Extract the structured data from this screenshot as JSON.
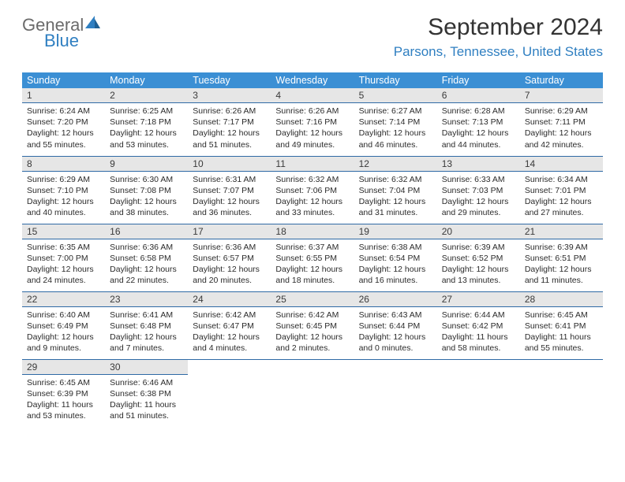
{
  "brand": {
    "general": "General",
    "blue": "Blue"
  },
  "title": "September 2024",
  "location": "Parsons, Tennessee, United States",
  "colors": {
    "header_bg": "#3b8fd4",
    "header_text": "#ffffff",
    "daynum_bg": "#e6e6e6",
    "rule": "#2f6aa5",
    "accent": "#2f7fc1",
    "text": "#2b2b2b"
  },
  "weekdays": [
    "Sunday",
    "Monday",
    "Tuesday",
    "Wednesday",
    "Thursday",
    "Friday",
    "Saturday"
  ],
  "days": [
    {
      "n": "1",
      "sunrise": "6:24 AM",
      "sunset": "7:20 PM",
      "dl1": "Daylight: 12 hours",
      "dl2": "and 55 minutes."
    },
    {
      "n": "2",
      "sunrise": "6:25 AM",
      "sunset": "7:18 PM",
      "dl1": "Daylight: 12 hours",
      "dl2": "and 53 minutes."
    },
    {
      "n": "3",
      "sunrise": "6:26 AM",
      "sunset": "7:17 PM",
      "dl1": "Daylight: 12 hours",
      "dl2": "and 51 minutes."
    },
    {
      "n": "4",
      "sunrise": "6:26 AM",
      "sunset": "7:16 PM",
      "dl1": "Daylight: 12 hours",
      "dl2": "and 49 minutes."
    },
    {
      "n": "5",
      "sunrise": "6:27 AM",
      "sunset": "7:14 PM",
      "dl1": "Daylight: 12 hours",
      "dl2": "and 46 minutes."
    },
    {
      "n": "6",
      "sunrise": "6:28 AM",
      "sunset": "7:13 PM",
      "dl1": "Daylight: 12 hours",
      "dl2": "and 44 minutes."
    },
    {
      "n": "7",
      "sunrise": "6:29 AM",
      "sunset": "7:11 PM",
      "dl1": "Daylight: 12 hours",
      "dl2": "and 42 minutes."
    },
    {
      "n": "8",
      "sunrise": "6:29 AM",
      "sunset": "7:10 PM",
      "dl1": "Daylight: 12 hours",
      "dl2": "and 40 minutes."
    },
    {
      "n": "9",
      "sunrise": "6:30 AM",
      "sunset": "7:08 PM",
      "dl1": "Daylight: 12 hours",
      "dl2": "and 38 minutes."
    },
    {
      "n": "10",
      "sunrise": "6:31 AM",
      "sunset": "7:07 PM",
      "dl1": "Daylight: 12 hours",
      "dl2": "and 36 minutes."
    },
    {
      "n": "11",
      "sunrise": "6:32 AM",
      "sunset": "7:06 PM",
      "dl1": "Daylight: 12 hours",
      "dl2": "and 33 minutes."
    },
    {
      "n": "12",
      "sunrise": "6:32 AM",
      "sunset": "7:04 PM",
      "dl1": "Daylight: 12 hours",
      "dl2": "and 31 minutes."
    },
    {
      "n": "13",
      "sunrise": "6:33 AM",
      "sunset": "7:03 PM",
      "dl1": "Daylight: 12 hours",
      "dl2": "and 29 minutes."
    },
    {
      "n": "14",
      "sunrise": "6:34 AM",
      "sunset": "7:01 PM",
      "dl1": "Daylight: 12 hours",
      "dl2": "and 27 minutes."
    },
    {
      "n": "15",
      "sunrise": "6:35 AM",
      "sunset": "7:00 PM",
      "dl1": "Daylight: 12 hours",
      "dl2": "and 24 minutes."
    },
    {
      "n": "16",
      "sunrise": "6:36 AM",
      "sunset": "6:58 PM",
      "dl1": "Daylight: 12 hours",
      "dl2": "and 22 minutes."
    },
    {
      "n": "17",
      "sunrise": "6:36 AM",
      "sunset": "6:57 PM",
      "dl1": "Daylight: 12 hours",
      "dl2": "and 20 minutes."
    },
    {
      "n": "18",
      "sunrise": "6:37 AM",
      "sunset": "6:55 PM",
      "dl1": "Daylight: 12 hours",
      "dl2": "and 18 minutes."
    },
    {
      "n": "19",
      "sunrise": "6:38 AM",
      "sunset": "6:54 PM",
      "dl1": "Daylight: 12 hours",
      "dl2": "and 16 minutes."
    },
    {
      "n": "20",
      "sunrise": "6:39 AM",
      "sunset": "6:52 PM",
      "dl1": "Daylight: 12 hours",
      "dl2": "and 13 minutes."
    },
    {
      "n": "21",
      "sunrise": "6:39 AM",
      "sunset": "6:51 PM",
      "dl1": "Daylight: 12 hours",
      "dl2": "and 11 minutes."
    },
    {
      "n": "22",
      "sunrise": "6:40 AM",
      "sunset": "6:49 PM",
      "dl1": "Daylight: 12 hours",
      "dl2": "and 9 minutes."
    },
    {
      "n": "23",
      "sunrise": "6:41 AM",
      "sunset": "6:48 PM",
      "dl1": "Daylight: 12 hours",
      "dl2": "and 7 minutes."
    },
    {
      "n": "24",
      "sunrise": "6:42 AM",
      "sunset": "6:47 PM",
      "dl1": "Daylight: 12 hours",
      "dl2": "and 4 minutes."
    },
    {
      "n": "25",
      "sunrise": "6:42 AM",
      "sunset": "6:45 PM",
      "dl1": "Daylight: 12 hours",
      "dl2": "and 2 minutes."
    },
    {
      "n": "26",
      "sunrise": "6:43 AM",
      "sunset": "6:44 PM",
      "dl1": "Daylight: 12 hours",
      "dl2": "and 0 minutes."
    },
    {
      "n": "27",
      "sunrise": "6:44 AM",
      "sunset": "6:42 PM",
      "dl1": "Daylight: 11 hours",
      "dl2": "and 58 minutes."
    },
    {
      "n": "28",
      "sunrise": "6:45 AM",
      "sunset": "6:41 PM",
      "dl1": "Daylight: 11 hours",
      "dl2": "and 55 minutes."
    },
    {
      "n": "29",
      "sunrise": "6:45 AM",
      "sunset": "6:39 PM",
      "dl1": "Daylight: 11 hours",
      "dl2": "and 53 minutes."
    },
    {
      "n": "30",
      "sunrise": "6:46 AM",
      "sunset": "6:38 PM",
      "dl1": "Daylight: 11 hours",
      "dl2": "and 51 minutes."
    }
  ],
  "labels": {
    "sunrise_prefix": "Sunrise: ",
    "sunset_prefix": "Sunset: "
  }
}
